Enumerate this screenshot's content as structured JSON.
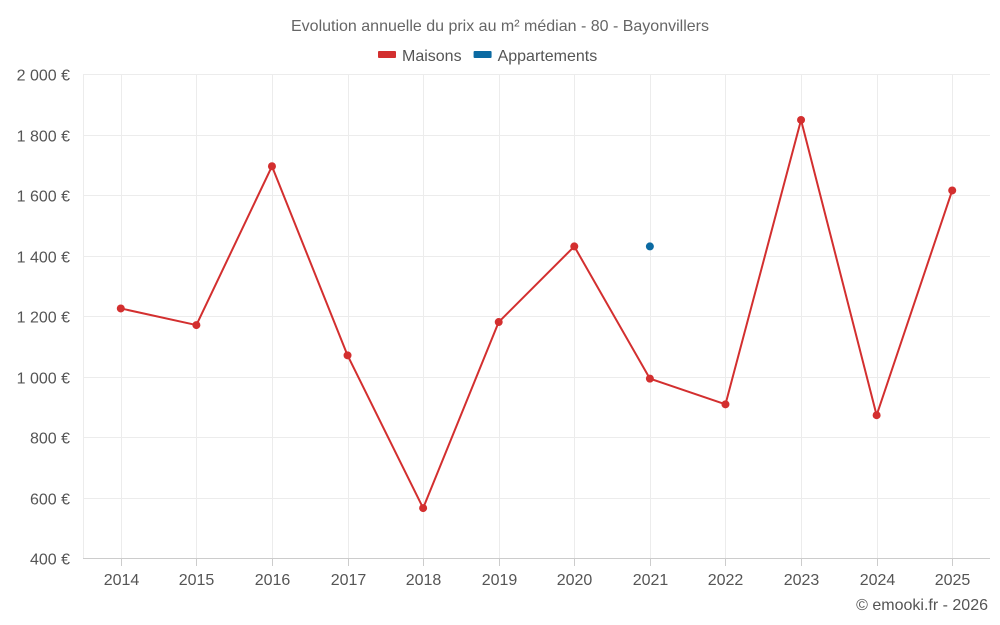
{
  "chart_data": {
    "type": "line",
    "title": "Evolution annuelle du prix au m² médian - 80 - Bayonvillers",
    "categories": [
      "2014",
      "2015",
      "2016",
      "2017",
      "2018",
      "2019",
      "2020",
      "2021",
      "2022",
      "2023",
      "2024",
      "2025"
    ],
    "series": [
      {
        "name": "Maisons",
        "color": "#d32f2f",
        "values": [
          1225,
          1170,
          1695,
          1070,
          565,
          1180,
          1430,
          993,
          908,
          1848,
          872,
          1615
        ]
      },
      {
        "name": "Appartements",
        "color": "#0b6aa2",
        "values": [
          null,
          null,
          null,
          null,
          null,
          null,
          null,
          1430,
          null,
          null,
          null,
          null
        ]
      }
    ],
    "ylim": [
      400,
      2000
    ],
    "yticks": [
      400,
      600,
      800,
      1000,
      1200,
      1400,
      1600,
      1800,
      2000
    ],
    "ytick_labels": [
      "400 €",
      "600 €",
      "800 €",
      "1 000 €",
      "1 200 €",
      "1 400 €",
      "1 600 €",
      "1 800 €",
      "2 000 €"
    ],
    "xlabel": "",
    "ylabel": "",
    "grid": true,
    "legend_position": "top-center"
  },
  "credit": "© emooki.fr - 2026"
}
